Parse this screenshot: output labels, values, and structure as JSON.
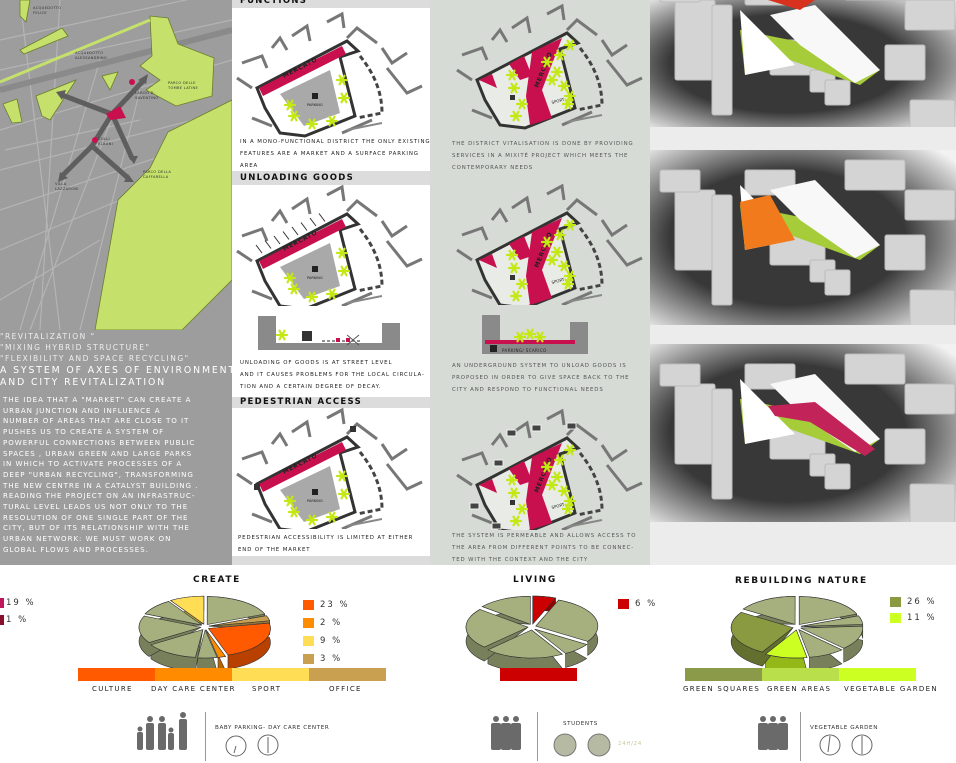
{
  "map": {
    "labels": {
      "acquedotto_felice": [
        "ACQUEDOTTO",
        "FELICE"
      ],
      "acquedotto_alessandrino": [
        "ACQUEDOTTO",
        "ALESSANDRINO"
      ],
      "parco_tombe_latine": [
        "PARCO DELLE",
        "TOMBE LATINE"
      ],
      "largo": [
        "LARGO D.",
        "SAVENTINO"
      ],
      "colli_albani": [
        "COLLI",
        "ALBANI"
      ],
      "villa_lazzaroni": [
        "VILLA",
        "LAZZARONI"
      ],
      "parco_caffarella": [
        "PARCO DELLA",
        "CAFFARELLA"
      ]
    },
    "colors": {
      "green": "#c6e06c",
      "market": "#c8104f",
      "ground": "#9d9d9d"
    }
  },
  "intro": {
    "tags": [
      "\"REVITALIZATION \"",
      "\"MIXING HYBRID STRUCTURE\"",
      "\"FLEXIBILITY AND SPACE RECYCLING\""
    ],
    "heading": [
      "A SYSTEM OF AXES OF ENVIRONMENTAL",
      "AND CITY REVITALIZATION"
    ],
    "body": [
      "THE IDEA THAT A \"MARKET\" CAN CREATE A",
      "URBAN JUNCTION AND INFLUENCE A",
      "NUMBER OF AREAS THAT ARE CLOSE TO IT",
      "PUSHES US TO CREATE A SYSTEM OF",
      "POWERFUL CONNECTIONS BETWEEN PUBLIC",
      "SPACES , URBAN GREEN AND LARGE PARKS",
      "IN WHICH TO ACTIVATE PROCESSES OF A",
      "DEEP \"URBAN RECYCLING\", TRANSFORMING",
      "THE NEW CENTRE IN A CATALYST BUILDING .",
      "READING THE PROJECT ON AN INFRASTRUC-",
      "TURAL LEVEL LEADS US NOT ONLY TO THE",
      "RESOLUTION OF ONE SINGLE PART OF THE",
      "CITY, BUT OF ITS RELATIONSHIP WITH THE",
      "URBAN NETWORK: WE MUST WORK ON",
      "GLOBAL FLOWS AND PROCESSES."
    ]
  },
  "diagram_labels": {
    "mercato": "MERCATO",
    "parking": "PARKING",
    "sport": "SPORT",
    "parking_scarico": "PARKING/ SCARICO"
  },
  "sections": [
    {
      "title": "FUNCTIONS",
      "existing_caption": [
        "IN A MONO-FUNCTIONAL DISTRICT THE ONLY EXISTING",
        "FEATURES ARE A MARKET AND A SURFACE PARKING",
        "AREA"
      ],
      "project_caption": [
        "THE DISTRICT VITALISATION IS DONE BY PROVIDING",
        "SERVICES IN A MIXITÉ PROJECT WHICH MEETS THE",
        "CONTEMPORARY NEEDS"
      ]
    },
    {
      "title": "UNLOADING GOODS",
      "existing_caption": [
        "UNLOADING OF GOODS IS AT STREET LEVEL",
        "AND IT CAUSES PROBLEMS FOR THE LOCAL CIRCULA-",
        "TION AND A CERTAIN DEGREE OF DECAY."
      ],
      "project_caption": [
        "AN UNDERGROUND SYSTEM TO UNLOAD GOODS IS",
        "PROPOSED IN ORDER TO GIVE SPACE BACK TO THE",
        "CITY AND RESPOND TO FUNCTIONAL NEEDS"
      ]
    },
    {
      "title": "PEDESTRIAN ACCESS",
      "existing_caption": [
        "PEDESTRIAN ACCESSIBILITY IS LIMITED AT EITHER",
        "END OF THE MARKET"
      ],
      "project_caption": [
        "THE SYSTEM IS PERMEABLE AND ALLOWS ACCESS TO",
        "THE AREA FROM DIFFERENT POINTS TO BE CONNEC-",
        "TED WITH THE CONTEXT AND THE CITY"
      ]
    }
  ],
  "renders": {
    "accents": [
      "#d8321e",
      "#f07a1c",
      "#c2245a"
    ],
    "green": "#a6cc3a"
  },
  "chart_data": [
    {
      "type": "pie",
      "title": "",
      "slices": [
        {
          "value": 19,
          "color": "#c0155a"
        },
        {
          "value": 1,
          "color": "#8a0f2a"
        }
      ],
      "legend": [
        "19 %",
        "1 %"
      ]
    },
    {
      "type": "pie",
      "title": "CREATE",
      "slices": [
        {
          "label": "CULTURE",
          "value": 23,
          "color": "#ff5a00"
        },
        {
          "label": "DAY CARE CENTER",
          "value": 2,
          "color": "#ff8c00"
        },
        {
          "label": "SPORT",
          "value": 9,
          "color": "#ffdd55"
        },
        {
          "label": "OFFICE",
          "value": 3,
          "color": "#c8a050"
        }
      ],
      "legend": [
        "23 %",
        "2 %",
        "9 %",
        "3 %"
      ],
      "other_color": "#a6b07e"
    },
    {
      "type": "pie",
      "title": "LIVING",
      "slices": [
        {
          "label": "",
          "value": 6,
          "color": "#cc0000"
        }
      ],
      "legend": [
        "6 %"
      ],
      "other_color": "#a6b07e"
    },
    {
      "type": "pie",
      "title": "REBUILDING NATURE",
      "slices": [
        {
          "label": "GREEN SQUARES",
          "value": 26,
          "color": "#8a9a40"
        },
        {
          "label": "VEGETABLE GARDEN",
          "value": 11,
          "color": "#ccff22"
        }
      ],
      "legend": [
        "26 %",
        "11 %"
      ],
      "bar": [
        {
          "label": "GREEN SQUARES",
          "color": "#8a9a48"
        },
        {
          "label": "GREEN AREAS",
          "color": "#b9e04a"
        },
        {
          "label": "VEGETABLE GARDEN",
          "color": "#ccff22"
        }
      ],
      "other_color": "#a6b07e"
    }
  ],
  "users": [
    {
      "label": "BABY PARKING- DAY CARE CENTER",
      "icon": "family-silhouette-icon",
      "time": "clock-icon"
    },
    {
      "label": "STUDENTS",
      "icon": "students-silhouette-icon",
      "time_label": "24H/24"
    },
    {
      "label": "VEGETABLE GARDEN",
      "icon": "adults-silhouette-icon",
      "time": "clock-icon"
    }
  ]
}
